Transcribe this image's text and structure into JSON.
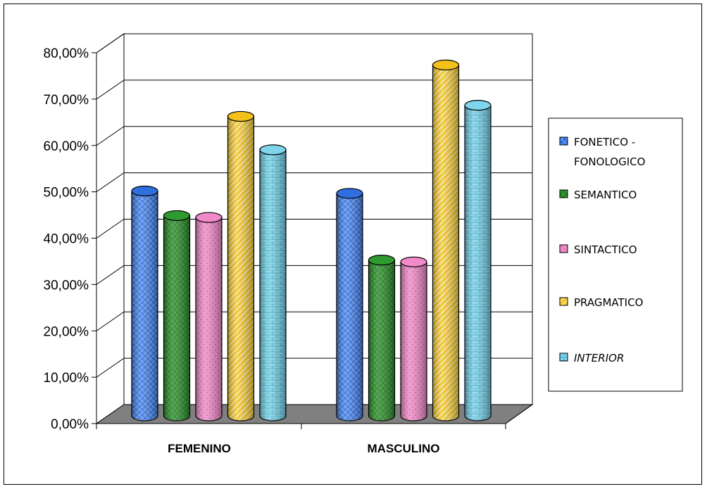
{
  "chart_data": {
    "type": "bar",
    "categories": [
      "FEMENINO",
      "MASCULINO"
    ],
    "series": [
      {
        "name": "FONETICO - FONOLOGICO",
        "values": [
          48.5,
          48.0
        ],
        "color": "#2f6fe0"
      },
      {
        "name": "SEMANTICO",
        "values": [
          43.2,
          33.6
        ],
        "color": "#2f9a2f"
      },
      {
        "name": "SINTACTICO",
        "values": [
          42.8,
          33.2
        ],
        "color": "#f08ac8"
      },
      {
        "name": "PRAGMATICO",
        "values": [
          64.6,
          75.7
        ],
        "color": "#f2c21a"
      },
      {
        "name": "INTERIOR",
        "values": [
          57.4,
          67.0
        ],
        "color": "#7fd6ec"
      }
    ],
    "y_tick_labels": [
      "0,00%",
      "10,00%",
      "20,00%",
      "30,00%",
      "40,00%",
      "50,00%",
      "60,00%",
      "70,00%",
      "80,00%"
    ],
    "ylim": [
      0,
      80
    ],
    "grid": true,
    "legend_position": "right",
    "legend_lines": [
      [
        "FONETICO -",
        "FONOLOGICO"
      ],
      [
        "SEMANTICO"
      ],
      [
        "SINTACTICO"
      ],
      [
        "PRAGMATICO"
      ],
      [
        "INTERIOR"
      ]
    ]
  }
}
